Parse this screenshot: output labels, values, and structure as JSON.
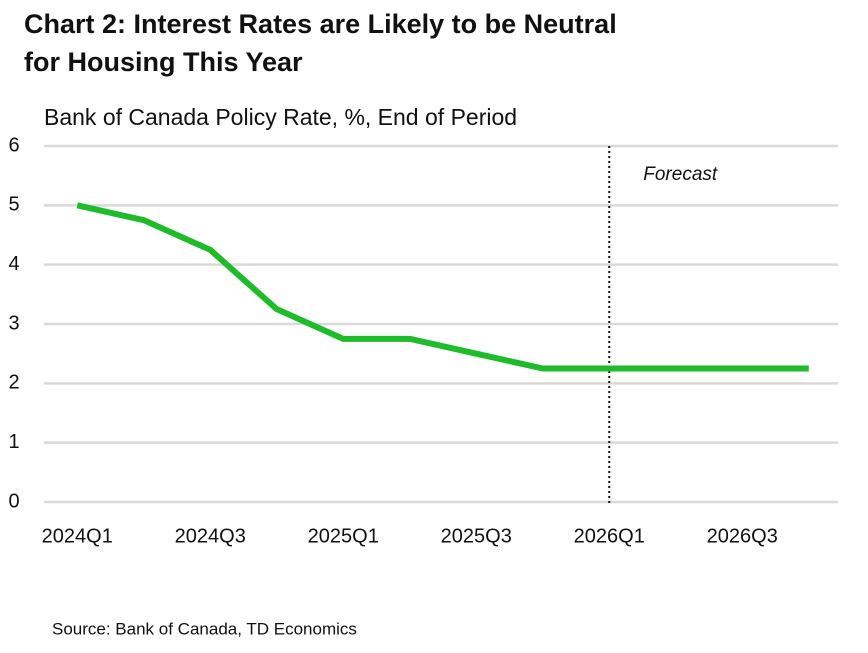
{
  "chart_data": {
    "type": "line",
    "title": [
      "Chart 2: Interest Rates are Likely to be Neutral",
      "for Housing This Year"
    ],
    "subtitle": "Bank of Canada Policy Rate, %, End of Period",
    "categories": [
      "2024Q1",
      null,
      "2024Q3",
      null,
      "2025Q1",
      null,
      "2025Q3",
      null,
      "2026Q1",
      null,
      "2026Q3",
      null
    ],
    "series": [
      {
        "name": "Bank of Canada Policy Rate",
        "color": "#1fbb2b",
        "values": [
          5,
          4.75,
          4.25,
          3.25,
          2.75,
          2.75,
          2.5,
          2.25,
          2.25,
          2.25,
          2.25,
          2.25
        ]
      }
    ],
    "ylim": [
      0,
      6
    ],
    "yticks": [
      0,
      1,
      2,
      3,
      4,
      5,
      6
    ],
    "grid": true,
    "forecast_line_at": 8,
    "annotation": "Forecast",
    "source": "Source: Bank of Canada, TD Economics"
  }
}
